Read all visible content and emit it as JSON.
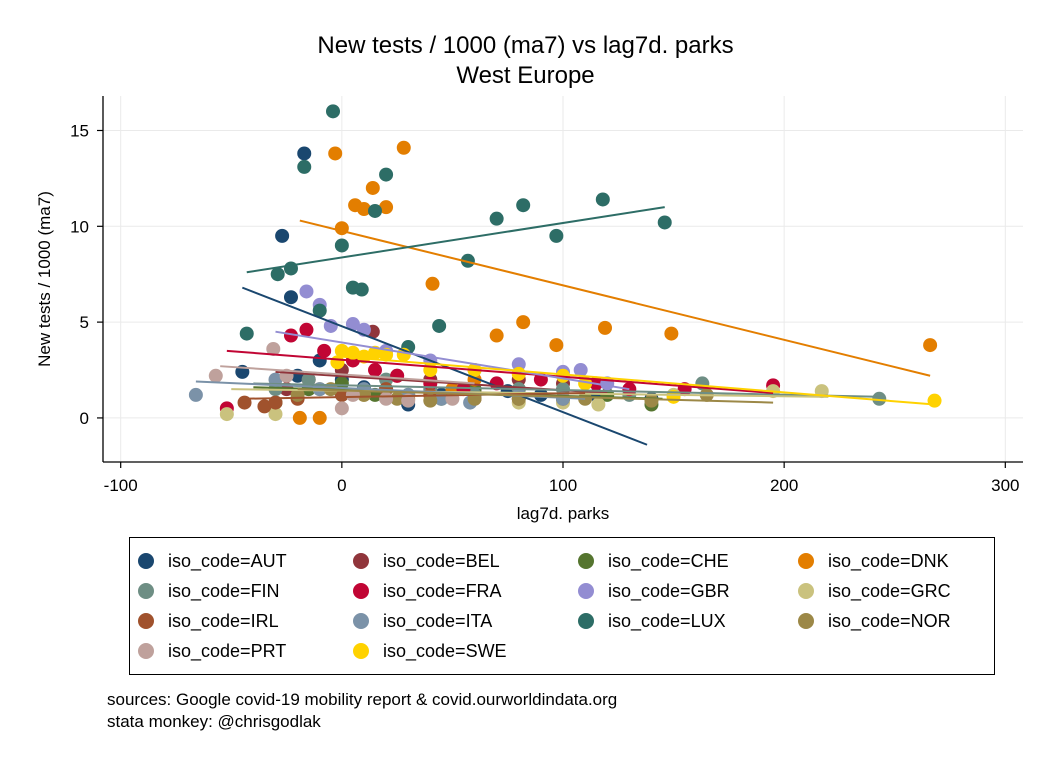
{
  "chart_data": {
    "type": "scatter",
    "title": "New tests / 1000 (ma7) vs lag7d. parks",
    "subtitle": "West Europe",
    "xlabel": "lag7d. parks",
    "ylabel": "New tests / 1000 (ma7)",
    "xlim": [
      -108,
      308
    ],
    "ylim": [
      -2.3,
      16.8
    ],
    "xticks": [
      -100,
      0,
      100,
      200,
      300
    ],
    "yticks": [
      0,
      5,
      10,
      15
    ],
    "xtick_labels": [
      "-100",
      "0",
      "100",
      "200",
      "300"
    ],
    "ytick_labels": [
      "0",
      "5",
      "10",
      "15"
    ],
    "grid": true,
    "legend_position": "bottom",
    "series": [
      {
        "name": "iso_code=AUT",
        "color": "#1a476f",
        "points": [
          [
            -17,
            13.8
          ],
          [
            -27,
            9.5
          ],
          [
            -23,
            6.3
          ],
          [
            -45,
            2.4
          ],
          [
            -20,
            2.2
          ],
          [
            -10,
            3.0
          ],
          [
            0,
            2.0
          ],
          [
            10,
            1.6
          ],
          [
            20,
            1.5
          ],
          [
            30,
            0.7
          ],
          [
            45,
            1.2
          ],
          [
            60,
            1.3
          ],
          [
            75,
            1.4
          ],
          [
            90,
            1.2
          ],
          [
            115,
            1.2
          ],
          [
            140,
            1.0
          ]
        ],
        "fit": [
          [
            -45,
            6.8
          ],
          [
            138,
            -1.4
          ]
        ]
      },
      {
        "name": "iso_code=BEL",
        "color": "#90353b",
        "points": [
          [
            -25,
            1.5
          ],
          [
            -15,
            2.0
          ],
          [
            0,
            2.5
          ],
          [
            14,
            4.5
          ],
          [
            25,
            2.2
          ],
          [
            40,
            2.0
          ],
          [
            60,
            1.5
          ],
          [
            80,
            2.0
          ],
          [
            100,
            1.8
          ]
        ],
        "fit": [
          [
            -30,
            2.4
          ],
          [
            120,
            1.3
          ]
        ]
      },
      {
        "name": "iso_code=CHE",
        "color": "#55752f",
        "points": [
          [
            -30,
            0.8
          ],
          [
            -15,
            1.5
          ],
          [
            0,
            1.8
          ],
          [
            15,
            1.2
          ],
          [
            30,
            1.2
          ],
          [
            45,
            1.0
          ],
          [
            60,
            1.5
          ],
          [
            80,
            1.5
          ],
          [
            100,
            1.0
          ],
          [
            120,
            1.2
          ],
          [
            140,
            0.7
          ]
        ],
        "fit": [
          [
            -40,
            1.6
          ],
          [
            145,
            1.0
          ]
        ]
      },
      {
        "name": "iso_code=DNK",
        "color": "#e37e00",
        "points": [
          [
            -3,
            13.8
          ],
          [
            28,
            14.1
          ],
          [
            14,
            12.0
          ],
          [
            6,
            11.1
          ],
          [
            10,
            10.9
          ],
          [
            20,
            11.0
          ],
          [
            0,
            9.9
          ],
          [
            41,
            7.0
          ],
          [
            70,
            4.3
          ],
          [
            82,
            5.0
          ],
          [
            97,
            3.8
          ],
          [
            119,
            4.7
          ],
          [
            149,
            4.4
          ],
          [
            266,
            3.8
          ],
          [
            -19,
            0.0
          ],
          [
            -10,
            0.0
          ],
          [
            30,
            1.0
          ],
          [
            50,
            1.5
          ],
          [
            60,
            2.0
          ]
        ],
        "fit": [
          [
            -19,
            10.3
          ],
          [
            266,
            2.2
          ]
        ]
      },
      {
        "name": "iso_code=FIN",
        "color": "#6e8e84",
        "points": [
          [
            -30,
            1.5
          ],
          [
            -15,
            2.0
          ],
          [
            0,
            1.2
          ],
          [
            20,
            2.0
          ],
          [
            40,
            1.5
          ],
          [
            60,
            1.2
          ],
          [
            80,
            1.5
          ],
          [
            100,
            1.5
          ],
          [
            130,
            1.2
          ],
          [
            163,
            1.8
          ],
          [
            243,
            1.0
          ]
        ],
        "fit": [
          [
            -40,
            1.8
          ],
          [
            245,
            1.1
          ]
        ]
      },
      {
        "name": "iso_code=FRA",
        "color": "#c10534",
        "points": [
          [
            -52,
            0.5
          ],
          [
            -16,
            4.6
          ],
          [
            -23,
            4.3
          ],
          [
            -8,
            3.5
          ],
          [
            5,
            3.0
          ],
          [
            15,
            2.5
          ],
          [
            25,
            2.2
          ],
          [
            40,
            1.8
          ],
          [
            55,
            1.5
          ],
          [
            70,
            1.8
          ],
          [
            90,
            2.0
          ],
          [
            115,
            1.8
          ],
          [
            130,
            1.5
          ],
          [
            155,
            1.5
          ],
          [
            195,
            1.7
          ]
        ],
        "fit": [
          [
            -52,
            3.5
          ],
          [
            195,
            1.3
          ]
        ]
      },
      {
        "name": "iso_code=GBR",
        "color": "#938dd2",
        "points": [
          [
            -16,
            6.6
          ],
          [
            -10,
            5.9
          ],
          [
            -5,
            4.8
          ],
          [
            5,
            4.9
          ],
          [
            10,
            4.6
          ],
          [
            20,
            3.5
          ],
          [
            40,
            3.0
          ],
          [
            60,
            2.5
          ],
          [
            80,
            2.8
          ],
          [
            100,
            2.4
          ],
          [
            108,
            2.5
          ],
          [
            120,
            1.8
          ]
        ],
        "fit": [
          [
            -30,
            4.5
          ],
          [
            130,
            1.5
          ]
        ]
      },
      {
        "name": "iso_code=GRC",
        "color": "#cac27e",
        "points": [
          [
            -52,
            0.2
          ],
          [
            -30,
            0.2
          ],
          [
            -10,
            1.5
          ],
          [
            10,
            1.2
          ],
          [
            40,
            1.2
          ],
          [
            60,
            1.0
          ],
          [
            80,
            0.8
          ],
          [
            100,
            0.8
          ],
          [
            116,
            0.7
          ],
          [
            150,
            1.2
          ],
          [
            195,
            1.4
          ],
          [
            217,
            1.4
          ]
        ],
        "fit": [
          [
            -50,
            1.5
          ],
          [
            220,
            1.1
          ]
        ]
      },
      {
        "name": "iso_code=IRL",
        "color": "#a0522d",
        "points": [
          [
            -44,
            0.8
          ],
          [
            -35,
            0.6
          ],
          [
            -30,
            0.8
          ],
          [
            -20,
            1.0
          ],
          [
            0,
            1.2
          ],
          [
            20,
            1.5
          ],
          [
            40,
            1.2
          ],
          [
            60,
            1.0
          ],
          [
            80,
            1.0
          ],
          [
            100,
            1.0
          ]
        ],
        "fit": [
          [
            -45,
            1.0
          ],
          [
            110,
            1.3
          ]
        ]
      },
      {
        "name": "iso_code=ITA",
        "color": "#7b92a8",
        "points": [
          [
            -66,
            1.2
          ],
          [
            -30,
            2.0
          ],
          [
            -10,
            1.5
          ],
          [
            10,
            1.5
          ],
          [
            30,
            1.2
          ],
          [
            45,
            1.0
          ],
          [
            58,
            0.8
          ],
          [
            80,
            1.2
          ],
          [
            100,
            1.0
          ]
        ],
        "fit": [
          [
            -66,
            1.9
          ],
          [
            110,
            1.0
          ]
        ]
      },
      {
        "name": "iso_code=LUX",
        "color": "#2d6d66",
        "points": [
          [
            -4,
            16.0
          ],
          [
            -17,
            13.1
          ],
          [
            20,
            12.7
          ],
          [
            15,
            10.8
          ],
          [
            0,
            9.0
          ],
          [
            -23,
            7.8
          ],
          [
            -29,
            7.5
          ],
          [
            5,
            6.8
          ],
          [
            9,
            6.7
          ],
          [
            -43,
            4.4
          ],
          [
            -10,
            5.6
          ],
          [
            44,
            4.8
          ],
          [
            57,
            8.2
          ],
          [
            70,
            10.4
          ],
          [
            82,
            11.1
          ],
          [
            97,
            9.5
          ],
          [
            118,
            11.4
          ],
          [
            146,
            10.2
          ],
          [
            30,
            3.7
          ]
        ],
        "fit": [
          [
            -43,
            7.6
          ],
          [
            146,
            11.0
          ]
        ]
      },
      {
        "name": "iso_code=NOR",
        "color": "#9c8847",
        "points": [
          [
            -20,
            1.2
          ],
          [
            -5,
            1.5
          ],
          [
            10,
            1.2
          ],
          [
            25,
            1.0
          ],
          [
            40,
            0.9
          ],
          [
            60,
            1.0
          ],
          [
            80,
            1.0
          ],
          [
            110,
            1.0
          ],
          [
            140,
            0.9
          ],
          [
            165,
            1.2
          ]
        ],
        "fit": [
          [
            -20,
            1.5
          ],
          [
            195,
            0.8
          ]
        ]
      },
      {
        "name": "iso_code=PRT",
        "color": "#bfa19c",
        "points": [
          [
            -57,
            2.2
          ],
          [
            -31,
            3.6
          ],
          [
            -25,
            2.2
          ],
          [
            0,
            0.5
          ],
          [
            5,
            1.2
          ],
          [
            20,
            1.0
          ],
          [
            30,
            0.9
          ],
          [
            50,
            1.0
          ]
        ],
        "fit": [
          [
            -55,
            2.7
          ],
          [
            60,
            1.8
          ]
        ]
      },
      {
        "name": "iso_code=SWE",
        "color": "#ffd200",
        "points": [
          [
            0,
            3.5
          ],
          [
            5,
            3.4
          ],
          [
            10,
            3.2
          ],
          [
            15,
            3.4
          ],
          [
            20,
            3.3
          ],
          [
            28,
            3.3
          ],
          [
            -2,
            2.9
          ],
          [
            40,
            2.5
          ],
          [
            60,
            2.5
          ],
          [
            80,
            2.3
          ],
          [
            100,
            2.2
          ],
          [
            110,
            1.8
          ],
          [
            150,
            1.1
          ],
          [
            268,
            0.9
          ]
        ],
        "fit": [
          [
            0,
            3.2
          ],
          [
            268,
            0.7
          ]
        ]
      }
    ]
  },
  "notes": {
    "line1": "sources: Google covid-19 mobility report & covid.ourworldindata.org",
    "line2": "stata monkey: @chrisgodlak"
  }
}
